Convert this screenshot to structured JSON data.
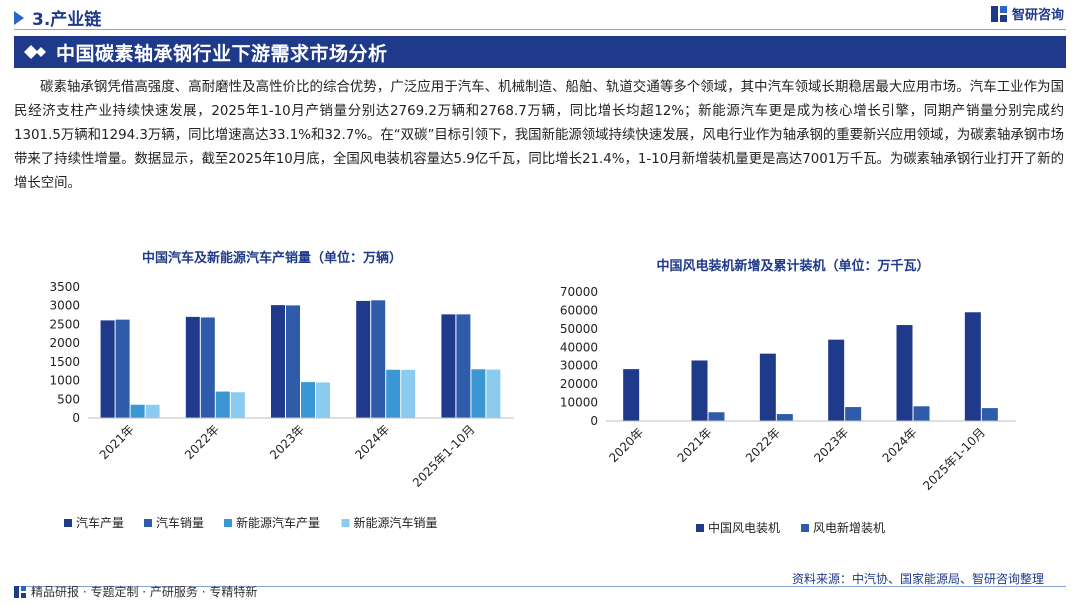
{
  "header": {
    "section": "3.产业链",
    "brand": "智研咨询"
  },
  "banner": {
    "title": "中国碳素轴承钢行业下游需求市场分析"
  },
  "body_text": "碳素轴承钢凭借高强度、高耐磨性及高性价比的综合优势，广泛应用于汽车、机械制造、船舶、轨道交通等多个领域，其中汽车领域长期稳居最大应用市场。汽车工业作为国民经济支柱产业持续快速发展，2025年1-10月产销量分别达2769.2万辆和2768.7万辆，同比增长均超12%；新能源汽车更是成为核心增长引擎，同期产销量分别完成约1301.5万辆和1294.3万辆，同比增速高达33.1%和32.7%。在“双碳”目标引领下，我国新能源领域持续快速发展，风电行业作为轴承钢的重要新兴应用领域，为碳素轴承钢市场带来了持续性增量。数据显示，截至2025年10月底，全国风电装机容量达5.9亿千瓦，同比增长21.4%，1-10月新增装机量更是高达7001万千瓦。为碳素轴承钢行业打开了新的增长空间。",
  "chart_data": [
    {
      "type": "bar",
      "title": "中国汽车及新能源汽车产销量（单位：万辆）",
      "categories": [
        "2021年",
        "2022年",
        "2023年",
        "2024年",
        "2025年1-10月"
      ],
      "ylim": [
        0,
        3500
      ],
      "yticks": [
        0,
        500,
        1000,
        1500,
        2000,
        2500,
        3000,
        3500
      ],
      "grid": false,
      "legend_position": "bottom",
      "series": [
        {
          "name": "汽车产量",
          "color": "#1f3a8a",
          "values": [
            2608,
            2702,
            3016,
            3128,
            2769.2
          ]
        },
        {
          "name": "汽车销量",
          "color": "#2f5caa",
          "values": [
            2628,
            2686,
            3009,
            3144,
            2768.7
          ]
        },
        {
          "name": "新能源汽车产量",
          "color": "#3b97d3",
          "values": [
            355,
            706,
            959,
            1289,
            1301.5
          ]
        },
        {
          "name": "新能源汽车销量",
          "color": "#8ccbf0",
          "values": [
            352,
            689,
            950,
            1287,
            1294.3
          ]
        }
      ]
    },
    {
      "type": "bar",
      "title": "中国风电装机新增及累计装机（单位：万千瓦）",
      "categories": [
        "2020年",
        "2021年",
        "2022年",
        "2023年",
        "2024年",
        "2025年1-10月"
      ],
      "ylim": [
        0,
        70000
      ],
      "yticks": [
        0,
        10000,
        20000,
        30000,
        40000,
        50000,
        60000,
        70000
      ],
      "grid": false,
      "legend_position": "bottom",
      "series": [
        {
          "name": "中国风电装机",
          "color": "#1f3a8a",
          "values": [
            28153,
            32848,
            36544,
            44134,
            52068,
            59000
          ]
        },
        {
          "name": "风电新增装机",
          "color": "#2f5caa",
          "values": [
            0,
            4757,
            3763,
            7566,
            7982,
            7001
          ]
        }
      ]
    }
  ],
  "footer": {
    "left": "精品研报 · 专题定制 · 产研服务 · 专精特新",
    "source": "资料来源：中汽协、国家能源局、智研咨询整理"
  }
}
